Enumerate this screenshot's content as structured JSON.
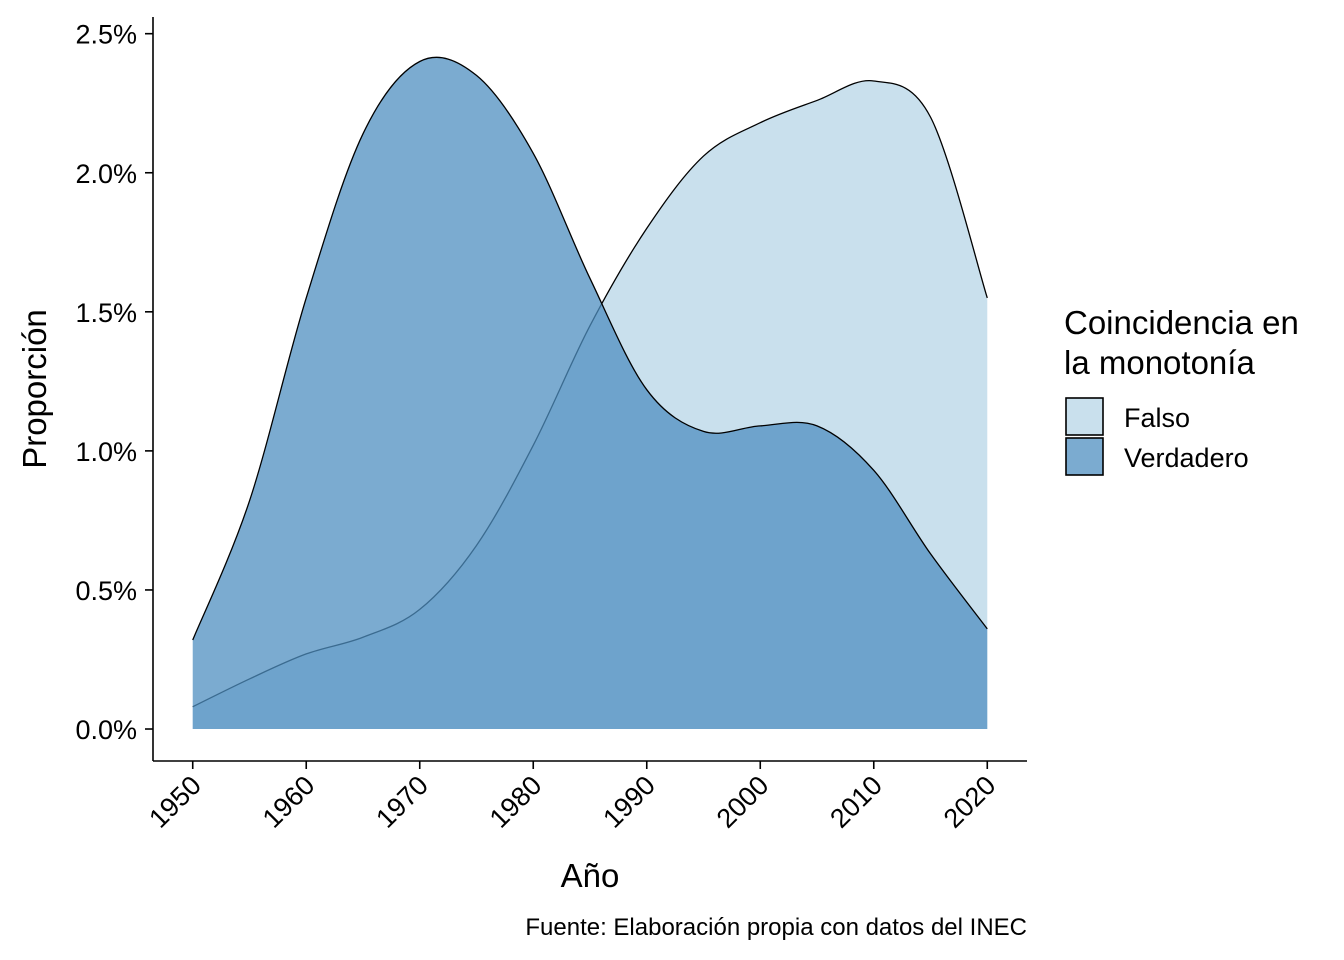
{
  "chart_data": {
    "type": "area",
    "title": "",
    "xlabel": "Año",
    "ylabel": "Proporción",
    "caption": "Fuente: Elaboración propia con datos del INEC",
    "xlim": [
      1946.5,
      2023.5
    ],
    "ylim": [
      -0.00115,
      0.0256
    ],
    "x_ticks": [
      1950,
      1960,
      1970,
      1980,
      1990,
      2000,
      2010,
      2020
    ],
    "x_tick_labels": [
      "1950",
      "1960",
      "1970",
      "1980",
      "1990",
      "2000",
      "2010",
      "2020"
    ],
    "y_ticks": [
      0,
      0.005,
      0.01,
      0.015,
      0.02,
      0.025
    ],
    "y_tick_labels": [
      "0.0%",
      "0.5%",
      "1.0%",
      "1.5%",
      "2.0%",
      "2.5%"
    ],
    "grid": false,
    "legend": {
      "title_lines": [
        "Coincidencia en",
        "la monotonía"
      ],
      "position": "right"
    },
    "series": [
      {
        "name": "Falso",
        "color": "#c9e0ed",
        "opacity": 1,
        "x": [
          1950,
          1955,
          1960,
          1965,
          1970,
          1975,
          1980,
          1985,
          1990,
          1995,
          2000,
          2005,
          2010,
          2015,
          2020
        ],
        "values": [
          0.0008,
          0.0018,
          0.0027,
          0.0033,
          0.0043,
          0.0066,
          0.0102,
          0.0145,
          0.018,
          0.0206,
          0.0218,
          0.0226,
          0.0233,
          0.022,
          0.0155
        ]
      },
      {
        "name": "Verdadero",
        "color": "#4f8fc0",
        "opacity": 0.75,
        "x": [
          1950,
          1955,
          1960,
          1965,
          1970,
          1975,
          1980,
          1985,
          1990,
          1995,
          2000,
          2005,
          2010,
          2015,
          2020
        ],
        "values": [
          0.0032,
          0.0082,
          0.0155,
          0.0214,
          0.024,
          0.0235,
          0.0207,
          0.0162,
          0.0122,
          0.0107,
          0.0109,
          0.0109,
          0.0093,
          0.0063,
          0.0036
        ]
      }
    ]
  }
}
